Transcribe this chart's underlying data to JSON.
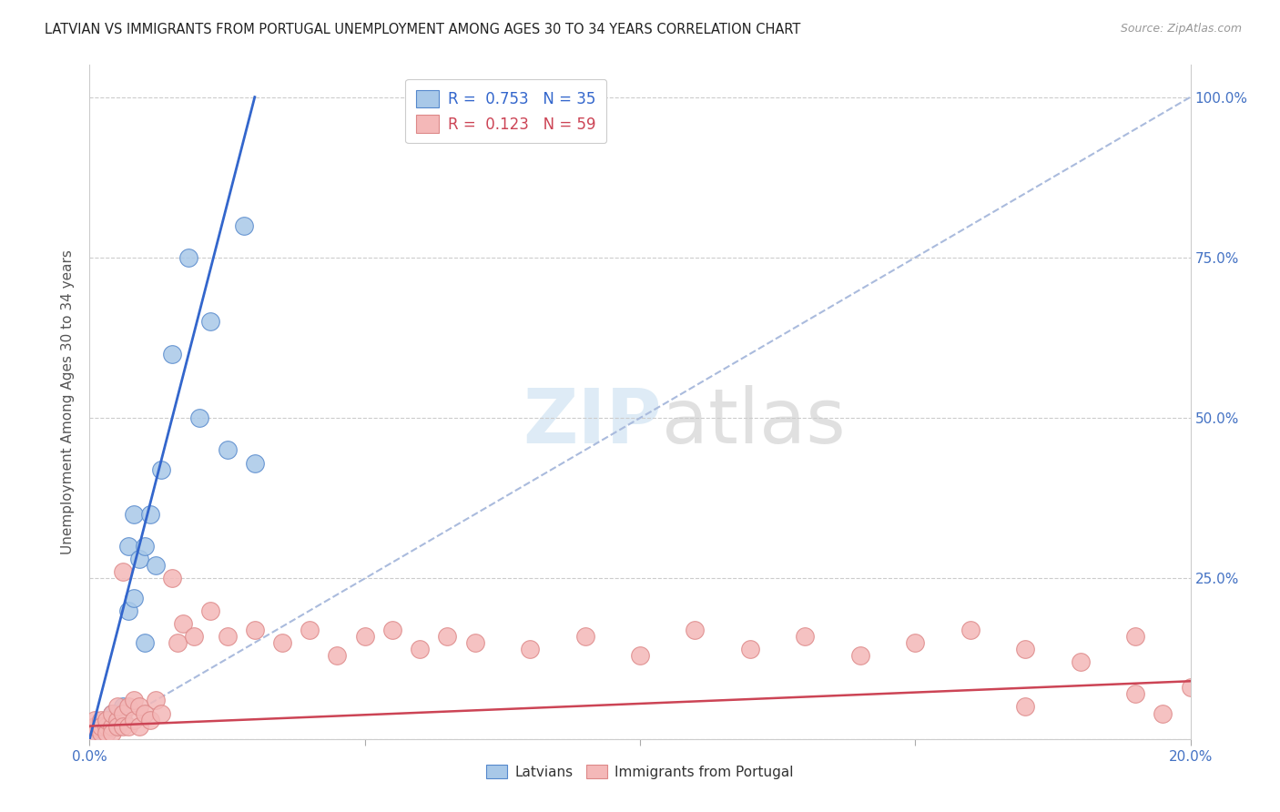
{
  "title": "LATVIAN VS IMMIGRANTS FROM PORTUGAL UNEMPLOYMENT AMONG AGES 30 TO 34 YEARS CORRELATION CHART",
  "source": "Source: ZipAtlas.com",
  "ylabel": "Unemployment Among Ages 30 to 34 years",
  "xlim": [
    0.0,
    0.2
  ],
  "ylim": [
    0.0,
    1.05
  ],
  "latvian_R": 0.753,
  "latvian_N": 35,
  "portugal_R": 0.123,
  "portugal_N": 59,
  "latvian_color": "#a8c8e8",
  "portugal_color": "#f4b8b8",
  "latvian_edge_color": "#5588cc",
  "portugal_edge_color": "#dd8888",
  "latvian_line_color": "#3366cc",
  "portugal_line_color": "#cc4455",
  "ref_line_color": "#aabbdd",
  "latvian_points_x": [
    0.0,
    0.001,
    0.001,
    0.002,
    0.002,
    0.002,
    0.003,
    0.003,
    0.003,
    0.003,
    0.004,
    0.004,
    0.004,
    0.005,
    0.005,
    0.005,
    0.006,
    0.006,
    0.007,
    0.007,
    0.008,
    0.008,
    0.009,
    0.01,
    0.01,
    0.011,
    0.012,
    0.013,
    0.015,
    0.018,
    0.02,
    0.022,
    0.025,
    0.028,
    0.03
  ],
  "latvian_points_y": [
    0.01,
    0.02,
    0.01,
    0.02,
    0.01,
    0.02,
    0.03,
    0.02,
    0.03,
    0.01,
    0.03,
    0.02,
    0.04,
    0.04,
    0.02,
    0.03,
    0.05,
    0.03,
    0.2,
    0.3,
    0.22,
    0.35,
    0.28,
    0.3,
    0.15,
    0.35,
    0.27,
    0.42,
    0.6,
    0.75,
    0.5,
    0.65,
    0.45,
    0.8,
    0.43
  ],
  "portugal_points_x": [
    0.0,
    0.001,
    0.001,
    0.002,
    0.002,
    0.002,
    0.003,
    0.003,
    0.003,
    0.004,
    0.004,
    0.004,
    0.005,
    0.005,
    0.005,
    0.006,
    0.006,
    0.006,
    0.007,
    0.007,
    0.008,
    0.008,
    0.009,
    0.009,
    0.01,
    0.011,
    0.012,
    0.013,
    0.015,
    0.016,
    0.017,
    0.019,
    0.022,
    0.025,
    0.03,
    0.035,
    0.04,
    0.045,
    0.05,
    0.055,
    0.06,
    0.065,
    0.07,
    0.08,
    0.09,
    0.1,
    0.11,
    0.12,
    0.13,
    0.14,
    0.15,
    0.16,
    0.17,
    0.18,
    0.19,
    0.2,
    0.19,
    0.195,
    0.17
  ],
  "portugal_points_y": [
    0.01,
    0.02,
    0.03,
    0.01,
    0.03,
    0.02,
    0.02,
    0.01,
    0.03,
    0.02,
    0.04,
    0.01,
    0.03,
    0.02,
    0.05,
    0.26,
    0.04,
    0.02,
    0.05,
    0.02,
    0.06,
    0.03,
    0.05,
    0.02,
    0.04,
    0.03,
    0.06,
    0.04,
    0.25,
    0.15,
    0.18,
    0.16,
    0.2,
    0.16,
    0.17,
    0.15,
    0.17,
    0.13,
    0.16,
    0.17,
    0.14,
    0.16,
    0.15,
    0.14,
    0.16,
    0.13,
    0.17,
    0.14,
    0.16,
    0.13,
    0.15,
    0.17,
    0.14,
    0.12,
    0.16,
    0.08,
    0.07,
    0.04,
    0.05
  ],
  "latvian_trend_x": [
    0.0,
    0.03
  ],
  "latvian_trend_y": [
    0.0,
    1.0
  ],
  "portugal_trend_x": [
    0.0,
    0.2
  ],
  "portugal_trend_y": [
    0.02,
    0.09
  ]
}
